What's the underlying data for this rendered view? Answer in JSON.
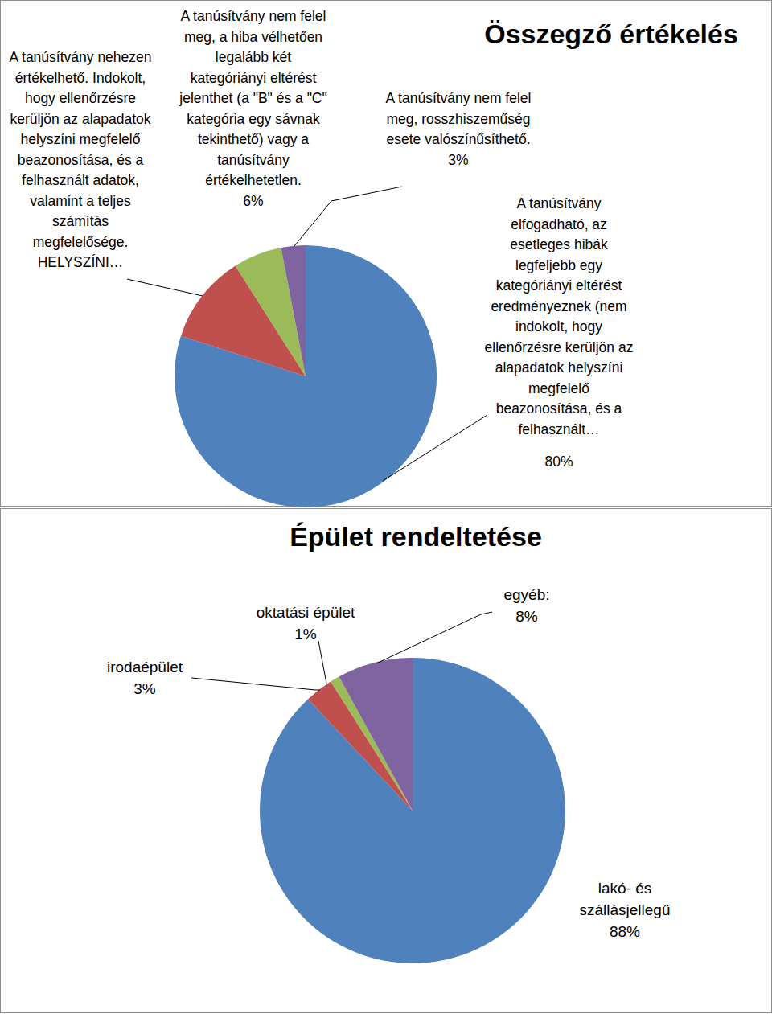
{
  "chart_data": [
    {
      "type": "pie",
      "title": "Összegző értékelés",
      "categories": [
        "A tanúsítvány elfogadható, az esetleges hibák legfeljebb egy kategóriányi eltérést eredményeznek (nem indokolt, hogy ellenőrzésre kerüljön az alapadatok helyszíni megfelelő beazonosítása, és a felhasznált…",
        "A tanúsítvány nehezen értékelhető. Indokolt, hogy ellenőrzésre kerüljön az alapadatok helyszíni megfelelő beazonosítása, és a felhasznált adatok, valamint a teljes számítás megfelelősége. HELYSZÍNI…",
        "A tanúsítvány nem felel meg, a hiba vélhetően legalább két kategóriányi eltérést jelenthet (a \"B\" és a \"C\" kategória egy sávnak tekinthető) vagy a tanúsítvány értékelhetetlen.",
        "A tanúsítvány nem felel meg, rosszhiszeműség esete valószínűsíthető."
      ],
      "values": [
        80,
        11,
        6,
        3
      ],
      "value_labels": [
        "80%",
        null,
        "6%",
        "3%"
      ],
      "colors": [
        "#4f81bd",
        "#c0504d",
        "#9bbb59",
        "#8064a2"
      ],
      "data_labels": true
    },
    {
      "type": "pie",
      "title": "Épület rendeltetése",
      "categories": [
        "lakó- és szállásjellegű",
        "irodaépület",
        "oktatási épület",
        "egyéb:"
      ],
      "values": [
        88,
        3,
        1,
        8
      ],
      "value_labels": [
        "88%",
        "3%",
        "1%",
        "8%"
      ],
      "colors": [
        "#4f81bd",
        "#c0504d",
        "#9bbb59",
        "#8064a2"
      ],
      "data_labels": true
    }
  ]
}
